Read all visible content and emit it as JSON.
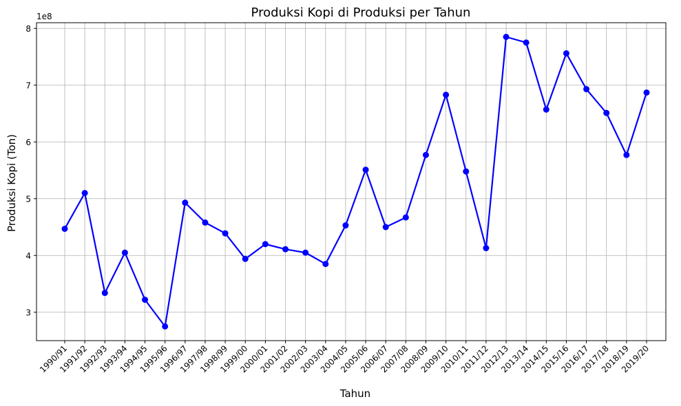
{
  "chart_data": {
    "type": "line",
    "title": "Produksi Kopi di Produksi per Tahun",
    "xlabel": "Tahun",
    "ylabel": "Produksi Kopi (Ton)",
    "y_scale_label": "1e8",
    "ylim": [
      250000000,
      810000000
    ],
    "yticks": [
      300000000,
      400000000,
      500000000,
      600000000,
      700000000,
      800000000
    ],
    "ytick_labels": [
      "3",
      "4",
      "5",
      "6",
      "7",
      "8"
    ],
    "grid": true,
    "color": "#0000ff",
    "categories": [
      "1990/91",
      "1991/92",
      "1992/93",
      "1993/94",
      "1994/95",
      "1995/96",
      "1996/97",
      "1997/98",
      "1998/99",
      "1999/00",
      "2000/01",
      "2001/02",
      "2002/03",
      "2003/04",
      "2004/05",
      "2005/06",
      "2006/07",
      "2007/08",
      "2008/09",
      "2009/10",
      "2010/11",
      "2011/12",
      "2012/13",
      "2013/14",
      "2014/15",
      "2015/16",
      "2016/17",
      "2017/18",
      "2018/19",
      "2019/20"
    ],
    "series": [
      {
        "values": [
          447000000,
          510000000,
          334000000,
          405000000,
          322000000,
          275000000,
          493000000,
          458000000,
          439000000,
          394000000,
          420000000,
          411000000,
          405000000,
          385000000,
          453000000,
          551000000,
          450000000,
          467000000,
          577000000,
          683000000,
          548000000,
          413000000,
          785000000,
          775000000,
          657000000,
          756000000,
          693000000,
          651000000,
          577000000,
          687000000
        ]
      }
    ]
  }
}
